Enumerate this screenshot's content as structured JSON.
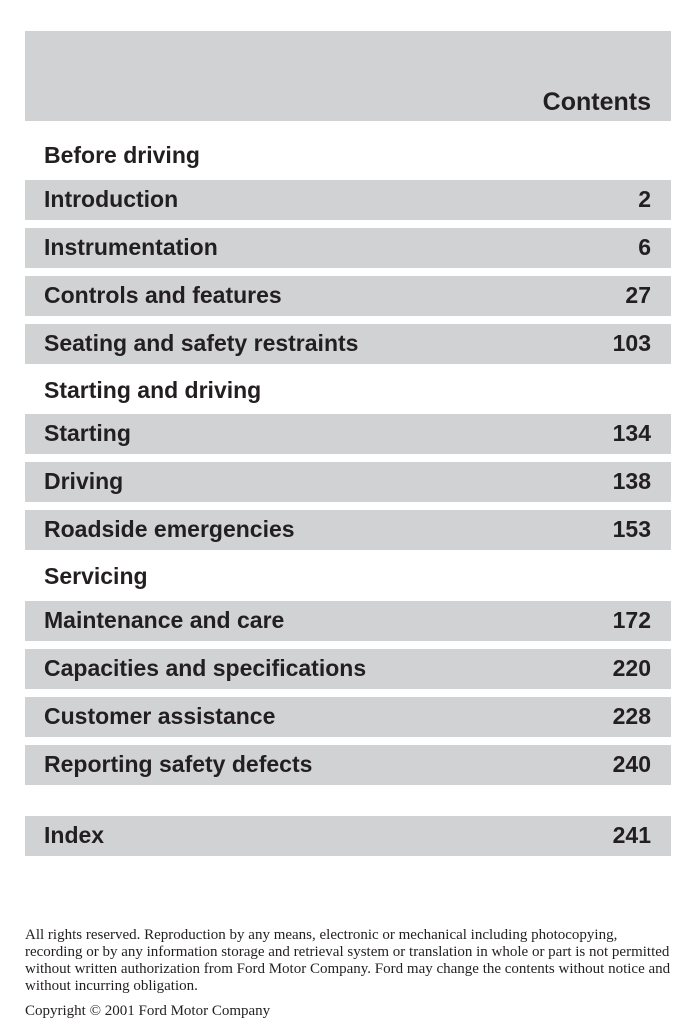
{
  "header": {
    "title": "Contents"
  },
  "sections": [
    {
      "heading": "Before driving"
    },
    {
      "heading": "Starting and driving"
    },
    {
      "heading": "Servicing"
    }
  ],
  "entries": [
    {
      "label": "Introduction",
      "page": "2"
    },
    {
      "label": "Instrumentation",
      "page": "6"
    },
    {
      "label": "Controls and features",
      "page": "27"
    },
    {
      "label": "Seating and safety restraints",
      "page": "103"
    },
    {
      "label": "Starting",
      "page": "134"
    },
    {
      "label": "Driving",
      "page": "138"
    },
    {
      "label": "Roadside emergencies",
      "page": "153"
    },
    {
      "label": "Maintenance and care",
      "page": "172"
    },
    {
      "label": "Capacities and specifications",
      "page": "220"
    },
    {
      "label": "Customer assistance",
      "page": "228"
    },
    {
      "label": "Reporting safety defects",
      "page": "240"
    },
    {
      "label": "Index",
      "page": "241"
    }
  ],
  "footer": {
    "notice": "All rights reserved. Reproduction by any means, electronic or mechanical including photocopying, recording or by any information storage and retrieval system or translation in whole or part is not permitted without written authorization from Ford Motor Company. Ford may change the contents without notice and without incurring obligation.",
    "copyright": "Copyright © 2001 Ford Motor Company"
  }
}
